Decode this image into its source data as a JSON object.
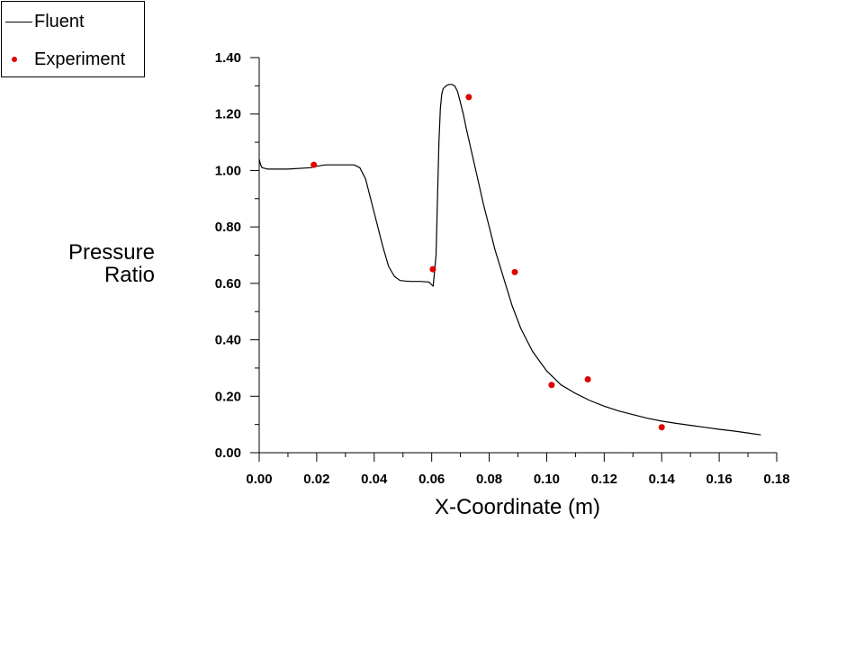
{
  "legend": {
    "items": [
      {
        "label": "Fluent",
        "marker": "line",
        "color": "#000000"
      },
      {
        "label": "Experiment",
        "marker": "dot",
        "color": "#e00000"
      }
    ]
  },
  "axes": {
    "xlabel": "X-Coordinate (m)",
    "ylabel_line1": "Pressure",
    "ylabel_line2": "Ratio",
    "xticks": [
      "0.00",
      "0.02",
      "0.04",
      "0.06",
      "0.08",
      "0.10",
      "0.12",
      "0.14",
      "0.16",
      "0.18"
    ],
    "yticks": [
      "0.00",
      "0.20",
      "0.40",
      "0.60",
      "0.80",
      "1.00",
      "1.20",
      "1.40"
    ]
  },
  "chart_data": {
    "type": "line",
    "title": "",
    "xlabel": "X-Coordinate (m)",
    "ylabel": "Pressure Ratio",
    "xlim": [
      0.0,
      0.18
    ],
    "ylim": [
      0.0,
      1.4
    ],
    "grid": false,
    "legend_position": "top-left (outside plot)",
    "series": [
      {
        "name": "Fluent",
        "style": "line",
        "color": "#000000",
        "x": [
          0.0,
          0.0005,
          0.001,
          0.003,
          0.01,
          0.018,
          0.02,
          0.023,
          0.026,
          0.03,
          0.033,
          0.035,
          0.037,
          0.039,
          0.041,
          0.043,
          0.045,
          0.047,
          0.049,
          0.051,
          0.053,
          0.056,
          0.059,
          0.0605,
          0.0615,
          0.062,
          0.0625,
          0.063,
          0.0635,
          0.064,
          0.065,
          0.066,
          0.067,
          0.068,
          0.069,
          0.07,
          0.071,
          0.072,
          0.074,
          0.076,
          0.078,
          0.08,
          0.082,
          0.085,
          0.088,
          0.091,
          0.095,
          0.1,
          0.105,
          0.11,
          0.115,
          0.12,
          0.125,
          0.13,
          0.135,
          0.14,
          0.145,
          0.15,
          0.155,
          0.16,
          0.165,
          0.17,
          0.1745
        ],
        "y": [
          1.04,
          1.02,
          1.01,
          1.005,
          1.005,
          1.01,
          1.015,
          1.02,
          1.02,
          1.02,
          1.02,
          1.01,
          0.97,
          0.89,
          0.81,
          0.73,
          0.66,
          0.625,
          0.61,
          0.608,
          0.607,
          0.607,
          0.605,
          0.59,
          0.7,
          0.9,
          1.1,
          1.22,
          1.27,
          1.29,
          1.3,
          1.305,
          1.305,
          1.3,
          1.28,
          1.24,
          1.2,
          1.15,
          1.06,
          0.97,
          0.88,
          0.8,
          0.72,
          0.62,
          0.52,
          0.44,
          0.36,
          0.29,
          0.24,
          0.21,
          0.185,
          0.165,
          0.148,
          0.135,
          0.122,
          0.112,
          0.104,
          0.097,
          0.09,
          0.083,
          0.077,
          0.07,
          0.063
        ]
      },
      {
        "name": "Experiment",
        "style": "scatter",
        "color": "#e00000",
        "x": [
          0.019,
          0.0604,
          0.0729,
          0.0889,
          0.1017,
          0.1143,
          0.14
        ],
        "y": [
          1.02,
          0.65,
          1.26,
          0.64,
          0.24,
          0.26,
          0.09
        ]
      }
    ]
  }
}
